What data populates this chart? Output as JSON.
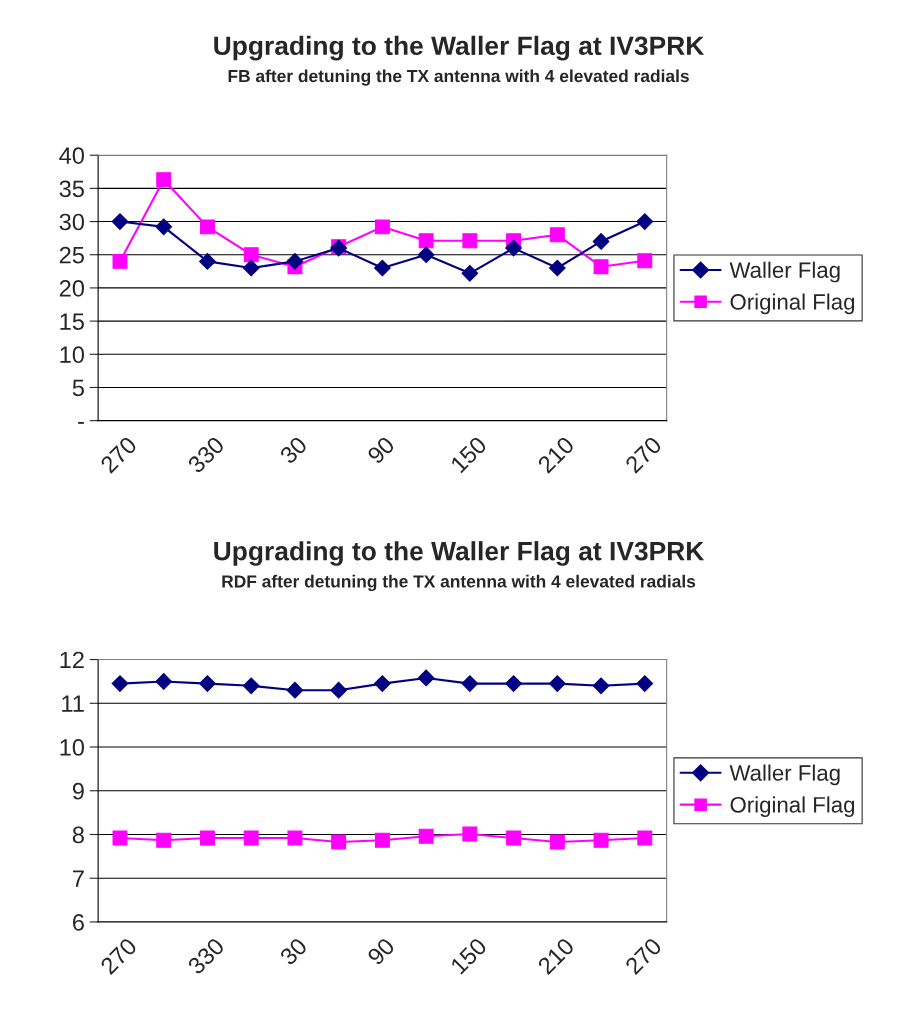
{
  "chart_data": [
    {
      "type": "line",
      "title": "Upgrading to the Waller Flag at IV3PRK",
      "subtitle": "FB after detuning the TX antenna with 4 elevated radials",
      "categories": [
        "270",
        null,
        "330",
        null,
        "30",
        null,
        "90",
        null,
        "150",
        null,
        "210",
        null,
        "270"
      ],
      "series": [
        {
          "name": "Waller Flag",
          "color": "#000080",
          "marker": "diamond",
          "values": [
            30,
            29.2,
            24,
            23,
            24,
            26,
            23,
            25,
            22.2,
            26,
            23,
            27,
            30
          ]
        },
        {
          "name": "Original Flag",
          "color": "#ff00ff",
          "marker": "square",
          "values": [
            24,
            36.3,
            29.2,
            25,
            23.2,
            26.2,
            29.2,
            27.1,
            27.1,
            27.1,
            28,
            23.2,
            24.1
          ]
        }
      ],
      "ylim": [
        0,
        40
      ],
      "yticks": [
        {
          "value": 0,
          "label": "-"
        },
        5,
        10,
        15,
        20,
        25,
        30,
        35,
        40
      ],
      "grid": "y",
      "legend": "right",
      "line_style": "solid"
    },
    {
      "type": "line",
      "title": "Upgrading to the Waller Flag at IV3PRK",
      "subtitle": "RDF after detuning the TX antenna with 4 elevated radials",
      "categories": [
        "270",
        null,
        "330",
        null,
        "30",
        null,
        "90",
        null,
        "150",
        null,
        "210",
        null,
        "270"
      ],
      "series": [
        {
          "name": "Waller Flag",
          "color": "#000080",
          "marker": "diamond",
          "values": [
            11.45,
            11.5,
            11.45,
            11.4,
            11.3,
            11.3,
            11.45,
            11.58,
            11.45,
            11.45,
            11.45,
            11.4,
            11.45
          ]
        },
        {
          "name": "Original Flag",
          "color": "#ff00ff",
          "marker": "square",
          "values": [
            7.92,
            7.87,
            7.92,
            7.92,
            7.92,
            7.83,
            7.87,
            7.96,
            8.01,
            7.92,
            7.83,
            7.87,
            7.92
          ]
        }
      ],
      "ylim": [
        6,
        12
      ],
      "yticks": [
        6,
        7,
        8,
        9,
        10,
        11,
        12
      ],
      "grid": "y",
      "legend": "right",
      "line_style": "solid"
    }
  ]
}
